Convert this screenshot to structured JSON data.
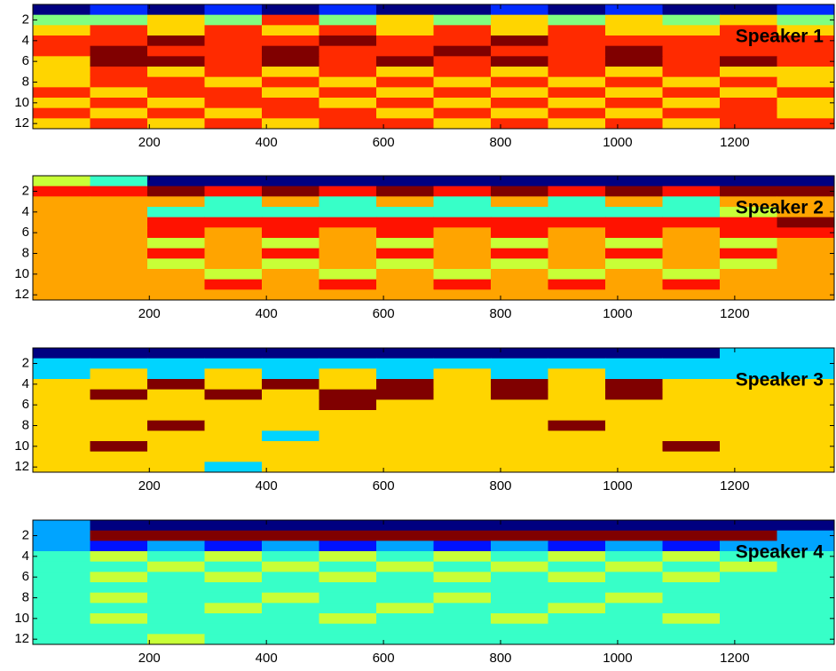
{
  "chart_data": [
    {
      "type": "heatmap",
      "annotation": "Speaker 1",
      "colormap": "jet",
      "xlim": [
        1,
        1370
      ],
      "ylim": [
        0.5,
        12.5
      ],
      "xticks": [
        200,
        400,
        600,
        800,
        1000,
        1200
      ],
      "yticks": [
        2,
        4,
        6,
        8,
        10,
        12
      ],
      "z": [
        [
          1,
          2,
          1,
          2,
          1,
          2,
          1,
          1,
          2,
          1,
          2,
          1,
          1,
          2
        ],
        [
          4,
          4,
          5,
          4,
          6,
          4,
          5,
          4,
          5,
          4,
          5,
          4,
          5,
          4
        ],
        [
          5,
          6,
          5,
          6,
          5,
          6,
          5,
          6,
          5,
          6,
          5,
          5,
          6,
          5
        ],
        [
          6,
          6,
          7,
          6,
          6,
          7,
          6,
          6,
          7,
          6,
          6,
          6,
          6,
          6
        ],
        [
          6,
          7,
          6,
          6,
          7,
          6,
          6,
          7,
          6,
          6,
          7,
          6,
          6,
          6
        ],
        [
          5,
          7,
          7,
          6,
          7,
          6,
          7,
          6,
          7,
          6,
          7,
          6,
          7,
          6
        ],
        [
          5,
          6,
          5,
          6,
          5,
          6,
          5,
          6,
          5,
          6,
          5,
          6,
          5,
          5
        ],
        [
          5,
          6,
          6,
          5,
          6,
          5,
          6,
          5,
          6,
          5,
          6,
          5,
          6,
          5
        ],
        [
          6,
          5,
          6,
          6,
          5,
          6,
          5,
          6,
          5,
          6,
          5,
          6,
          5,
          6
        ],
        [
          5,
          6,
          5,
          6,
          6,
          5,
          6,
          5,
          6,
          5,
          6,
          5,
          6,
          5
        ],
        [
          6,
          5,
          6,
          5,
          6,
          6,
          5,
          6,
          5,
          6,
          5,
          6,
          6,
          5
        ],
        [
          5,
          6,
          5,
          6,
          5,
          6,
          6,
          5,
          6,
          5,
          6,
          5,
          6,
          6
        ]
      ]
    },
    {
      "type": "heatmap",
      "annotation": "Speaker 2",
      "colormap": "jet",
      "xlim": [
        1,
        1370
      ],
      "ylim": [
        0.5,
        12.5
      ],
      "xticks": [
        200,
        400,
        600,
        800,
        1000,
        1200
      ],
      "yticks": [
        2,
        4,
        6,
        8,
        10,
        12
      ],
      "z": [
        [
          5,
          4,
          1,
          1,
          1,
          1,
          1,
          1,
          1,
          1,
          1,
          1,
          1,
          1
        ],
        [
          7,
          7,
          8,
          7,
          8,
          7,
          8,
          7,
          8,
          7,
          8,
          7,
          8,
          8
        ],
        [
          6,
          6,
          6,
          4,
          6,
          4,
          6,
          4,
          6,
          4,
          6,
          4,
          6,
          6
        ],
        [
          6,
          6,
          4,
          4,
          4,
          4,
          4,
          4,
          4,
          4,
          4,
          4,
          5,
          6
        ],
        [
          6,
          6,
          7,
          7,
          7,
          7,
          7,
          7,
          7,
          7,
          7,
          7,
          7,
          8
        ],
        [
          6,
          6,
          7,
          6,
          7,
          6,
          7,
          6,
          7,
          6,
          7,
          6,
          7,
          7
        ],
        [
          6,
          6,
          5,
          6,
          5,
          6,
          5,
          6,
          5,
          6,
          5,
          6,
          5,
          6
        ],
        [
          6,
          6,
          7,
          6,
          7,
          6,
          7,
          6,
          7,
          6,
          7,
          6,
          7,
          6
        ],
        [
          6,
          6,
          5,
          6,
          5,
          6,
          5,
          6,
          5,
          6,
          5,
          6,
          5,
          6
        ],
        [
          6,
          6,
          6,
          5,
          6,
          5,
          6,
          5,
          6,
          5,
          6,
          5,
          6,
          6
        ],
        [
          6,
          6,
          6,
          7,
          6,
          7,
          6,
          7,
          6,
          7,
          6,
          7,
          6,
          6
        ],
        [
          6,
          6,
          6,
          6,
          6,
          6,
          6,
          6,
          6,
          6,
          6,
          6,
          6,
          6
        ]
      ]
    },
    {
      "type": "heatmap",
      "annotation": "Speaker 3",
      "colormap": "jet",
      "xlim": [
        1,
        1370
      ],
      "ylim": [
        0.5,
        12.5
      ],
      "xticks": [
        200,
        400,
        600,
        800,
        1000,
        1200
      ],
      "yticks": [
        2,
        4,
        6,
        8,
        10,
        12
      ],
      "z": [
        [
          2,
          2,
          2,
          2,
          2,
          2,
          2,
          2,
          2,
          2,
          2,
          2,
          3,
          3
        ],
        [
          3,
          3,
          3,
          3,
          3,
          3,
          3,
          3,
          3,
          3,
          3,
          3,
          3,
          3
        ],
        [
          3,
          4,
          3,
          4,
          3,
          4,
          3,
          4,
          3,
          4,
          3,
          3,
          3,
          3
        ],
        [
          4,
          4,
          5,
          4,
          5,
          4,
          5,
          4,
          5,
          4,
          5,
          4,
          4,
          4
        ],
        [
          4,
          5,
          4,
          5,
          4,
          5,
          5,
          4,
          5,
          4,
          5,
          4,
          4,
          4
        ],
        [
          4,
          4,
          4,
          4,
          4,
          5,
          4,
          4,
          4,
          4,
          4,
          4,
          4,
          4
        ],
        [
          4,
          4,
          4,
          4,
          4,
          4,
          4,
          4,
          4,
          4,
          4,
          4,
          4,
          4
        ],
        [
          4,
          4,
          5,
          4,
          4,
          4,
          4,
          4,
          4,
          5,
          4,
          4,
          4,
          4
        ],
        [
          4,
          4,
          4,
          4,
          3,
          4,
          4,
          4,
          4,
          4,
          4,
          4,
          4,
          4
        ],
        [
          4,
          5,
          4,
          4,
          4,
          4,
          4,
          4,
          4,
          4,
          4,
          5,
          4,
          4
        ],
        [
          4,
          4,
          4,
          4,
          4,
          4,
          4,
          4,
          4,
          4,
          4,
          4,
          4,
          4
        ],
        [
          4,
          4,
          4,
          3,
          4,
          4,
          4,
          4,
          4,
          4,
          4,
          4,
          4,
          4
        ]
      ]
    },
    {
      "type": "heatmap",
      "annotation": "Speaker 4",
      "colormap": "jet",
      "xlim": [
        1,
        1370
      ],
      "ylim": [
        0.5,
        12.5
      ],
      "xticks": [
        200,
        400,
        600,
        800,
        1000,
        1200
      ],
      "yticks": [
        2,
        4,
        6,
        8,
        10,
        12
      ],
      "z": [
        [
          3,
          1,
          1,
          1,
          1,
          1,
          1,
          1,
          1,
          1,
          1,
          1,
          1,
          1
        ],
        [
          3,
          8,
          8,
          8,
          8,
          8,
          8,
          8,
          8,
          8,
          8,
          8,
          8,
          3
        ],
        [
          3,
          2,
          3,
          2,
          3,
          2,
          3,
          2,
          3,
          2,
          3,
          2,
          3,
          3
        ],
        [
          4,
          5,
          4,
          5,
          4,
          5,
          4,
          5,
          4,
          5,
          4,
          5,
          4,
          4
        ],
        [
          4,
          4,
          5,
          4,
          5,
          4,
          5,
          4,
          5,
          4,
          5,
          4,
          5,
          4
        ],
        [
          4,
          5,
          4,
          5,
          4,
          5,
          4,
          5,
          4,
          5,
          4,
          5,
          4,
          4
        ],
        [
          4,
          4,
          4,
          4,
          4,
          4,
          4,
          4,
          4,
          4,
          4,
          4,
          4,
          4
        ],
        [
          4,
          5,
          4,
          4,
          5,
          4,
          4,
          5,
          4,
          4,
          5,
          4,
          4,
          4
        ],
        [
          4,
          4,
          4,
          5,
          4,
          4,
          5,
          4,
          4,
          5,
          4,
          4,
          4,
          4
        ],
        [
          4,
          5,
          4,
          4,
          4,
          5,
          4,
          4,
          5,
          4,
          4,
          5,
          4,
          4
        ],
        [
          4,
          4,
          4,
          4,
          4,
          4,
          4,
          4,
          4,
          4,
          4,
          4,
          4,
          4
        ],
        [
          4,
          4,
          5,
          4,
          4,
          4,
          4,
          4,
          4,
          4,
          4,
          4,
          4,
          4
        ]
      ]
    }
  ]
}
